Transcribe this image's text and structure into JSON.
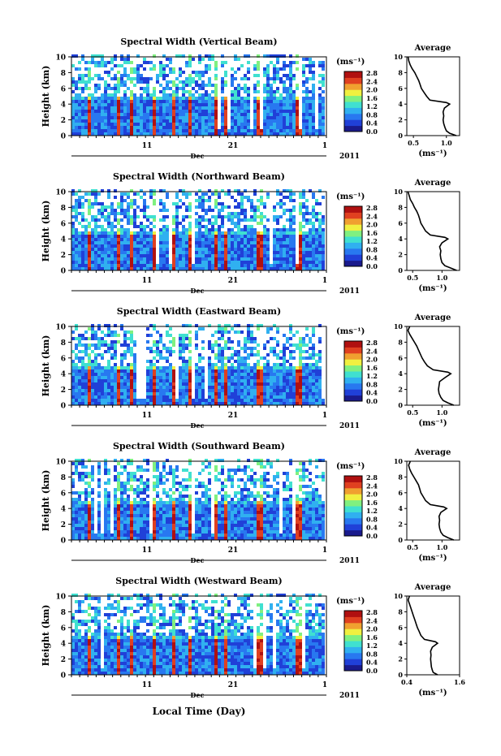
{
  "figure": {
    "xlabel_bottom": "Local Time (Day)",
    "month_label": "Dec",
    "year_label": "2011",
    "colorbar_unit": "(ms⁻¹)",
    "avg_title": "Average",
    "avg_xlabel": "(ms⁻¹)"
  },
  "chart_data": [
    {
      "type": "heatmap",
      "title": "Spectral Width (Vertical Beam)",
      "ylabel": "Height (km)",
      "ylim": [
        0,
        10
      ],
      "yticks": [
        0,
        2,
        4,
        6,
        8,
        10
      ],
      "xticks": [
        "11",
        "21",
        "1"
      ],
      "colorbar": {
        "ticks": [
          "0.0",
          "0.4",
          "0.8",
          "1.2",
          "1.6",
          "2.0",
          "2.4",
          "2.8"
        ],
        "range": [
          0,
          2.8
        ],
        "colors": [
          "#1a1a8c",
          "#2040d8",
          "#2878f0",
          "#30b0f0",
          "#40e0d0",
          "#80f080",
          "#f0f040",
          "#f0a030",
          "#e04020",
          "#b01010"
        ]
      },
      "average": {
        "xlim": [
          0.4,
          1.2
        ],
        "xticks": [
          "0.5",
          "1.0"
        ],
        "height": [
          0,
          0.3,
          0.6,
          1,
          1.5,
          2,
          2.5,
          3,
          3.5,
          4,
          4.2,
          4.5,
          5,
          5.5,
          6,
          6.5,
          7,
          7.5,
          8,
          8.5,
          9,
          9.5,
          10
        ],
        "value": [
          1.15,
          1.05,
          1.0,
          0.98,
          0.96,
          0.95,
          0.96,
          0.95,
          0.97,
          1.05,
          1.0,
          0.75,
          0.7,
          0.66,
          0.62,
          0.6,
          0.58,
          0.55,
          0.52,
          0.48,
          0.45,
          0.43,
          0.42
        ]
      }
    },
    {
      "type": "heatmap",
      "title": "Spectral Width (Northward Beam)",
      "ylabel": "Height (km)",
      "ylim": [
        0,
        10
      ],
      "yticks": [
        0,
        2,
        4,
        6,
        8,
        10
      ],
      "xticks": [
        "11",
        "21",
        "1"
      ],
      "colorbar": {
        "ticks": [
          "0.0",
          "0.4",
          "0.8",
          "1.2",
          "1.6",
          "2.0",
          "2.4",
          "2.8"
        ],
        "range": [
          0,
          2.8
        ],
        "colors": [
          "#1a1a8c",
          "#2040d8",
          "#2878f0",
          "#30b0f0",
          "#40e0d0",
          "#80f080",
          "#f0f040",
          "#f0a030",
          "#e04020",
          "#b01010"
        ]
      },
      "average": {
        "xlim": [
          0.4,
          1.3
        ],
        "xticks": [
          "0.5",
          "1.0"
        ],
        "height": [
          0,
          0.3,
          0.6,
          1,
          1.5,
          2,
          2.5,
          3,
          3.5,
          4,
          4.2,
          4.5,
          5,
          5.5,
          6,
          6.5,
          7,
          7.5,
          8,
          8.5,
          9,
          9.5,
          10
        ],
        "value": [
          1.25,
          1.15,
          1.05,
          1.0,
          0.98,
          0.97,
          0.98,
          0.96,
          1.0,
          1.1,
          1.05,
          0.8,
          0.72,
          0.68,
          0.64,
          0.62,
          0.6,
          0.57,
          0.53,
          0.5,
          0.46,
          0.44,
          0.42
        ]
      }
    },
    {
      "type": "heatmap",
      "title": "Spectral Width (Eastward Beam)",
      "ylabel": "Height (km)",
      "ylim": [
        0,
        10
      ],
      "yticks": [
        0,
        2,
        4,
        6,
        8,
        10
      ],
      "xticks": [
        "11",
        "21",
        "1"
      ],
      "colorbar": {
        "ticks": [
          "0.0",
          "0.4",
          "0.8",
          "1.2",
          "1.6",
          "2.0",
          "2.4",
          "2.8"
        ],
        "range": [
          0,
          2.8
        ],
        "colors": [
          "#1a1a8c",
          "#2040d8",
          "#2878f0",
          "#30b0f0",
          "#40e0d0",
          "#80f080",
          "#f0f040",
          "#f0a030",
          "#e04020",
          "#b01010"
        ]
      },
      "average": {
        "xlim": [
          0.4,
          1.3
        ],
        "xticks": [
          "0.5",
          "1.0"
        ],
        "height": [
          0,
          0.3,
          0.6,
          1,
          1.5,
          2,
          2.5,
          3,
          3.5,
          4,
          4.2,
          4.5,
          5,
          5.5,
          6,
          6.5,
          7,
          7.5,
          8,
          8.5,
          9,
          9.5,
          10
        ],
        "value": [
          1.2,
          1.1,
          1.02,
          0.98,
          0.95,
          0.94,
          0.95,
          0.96,
          1.05,
          1.15,
          1.1,
          0.85,
          0.75,
          0.7,
          0.66,
          0.63,
          0.6,
          0.57,
          0.53,
          0.49,
          0.45,
          0.42,
          0.45
        ]
      }
    },
    {
      "type": "heatmap",
      "title": "Spectral Width (Southward Beam)",
      "ylabel": "Height (km)",
      "ylim": [
        0,
        10
      ],
      "yticks": [
        0,
        2,
        4,
        6,
        8,
        10
      ],
      "xticks": [
        "11",
        "21",
        "1"
      ],
      "colorbar": {
        "ticks": [
          "0.0",
          "0.4",
          "0.8",
          "1.2",
          "1.6",
          "2.0",
          "2.4",
          "2.8"
        ],
        "range": [
          0,
          2.8
        ],
        "colors": [
          "#1a1a8c",
          "#2040d8",
          "#2878f0",
          "#30b0f0",
          "#40e0d0",
          "#80f080",
          "#f0f040",
          "#f0a030",
          "#e04020",
          "#b01010"
        ]
      },
      "average": {
        "xlim": [
          0.4,
          1.3
        ],
        "xticks": [
          "0.5",
          "1.0"
        ],
        "height": [
          0,
          0.3,
          0.6,
          1,
          1.5,
          2,
          2.5,
          3,
          3.5,
          4,
          4.2,
          4.5,
          5,
          5.5,
          6,
          6.5,
          7,
          7.5,
          8,
          8.5,
          9,
          9.5,
          10
        ],
        "value": [
          1.2,
          1.1,
          1.02,
          0.98,
          0.96,
          0.95,
          0.96,
          0.95,
          0.98,
          1.08,
          1.03,
          0.8,
          0.72,
          0.68,
          0.64,
          0.62,
          0.6,
          0.56,
          0.52,
          0.48,
          0.45,
          0.43,
          0.46
        ]
      }
    },
    {
      "type": "heatmap",
      "title": "Spectral Width (Westward Beam)",
      "ylabel": "Height (km)",
      "ylim": [
        0,
        10
      ],
      "yticks": [
        0,
        2,
        4,
        6,
        8,
        10
      ],
      "xticks": [
        "11",
        "21",
        "1"
      ],
      "colorbar": {
        "ticks": [
          "0.0",
          "0.4",
          "0.8",
          "1.2",
          "1.6",
          "2.0",
          "2.4",
          "2.8"
        ],
        "range": [
          0,
          2.8
        ],
        "colors": [
          "#1a1a8c",
          "#2040d8",
          "#2878f0",
          "#30b0f0",
          "#40e0d0",
          "#80f080",
          "#f0f040",
          "#f0a030",
          "#e04020",
          "#b01010"
        ]
      },
      "average": {
        "xlim": [
          0.4,
          1.6
        ],
        "xticks": [
          "0.4",
          "1.6"
        ],
        "height": [
          0,
          0.3,
          0.6,
          1,
          1.5,
          2,
          2.5,
          3,
          3.5,
          4,
          4.2,
          4.5,
          5,
          5.5,
          6,
          6.5,
          7,
          7.5,
          8,
          8.5,
          9,
          9.5,
          10
        ],
        "value": [
          1.1,
          1.0,
          0.98,
          0.96,
          0.95,
          0.94,
          0.95,
          0.94,
          0.98,
          1.1,
          1.05,
          0.8,
          0.72,
          0.68,
          0.64,
          0.61,
          0.58,
          0.55,
          0.52,
          0.49,
          0.46,
          0.43,
          0.46
        ]
      }
    }
  ]
}
